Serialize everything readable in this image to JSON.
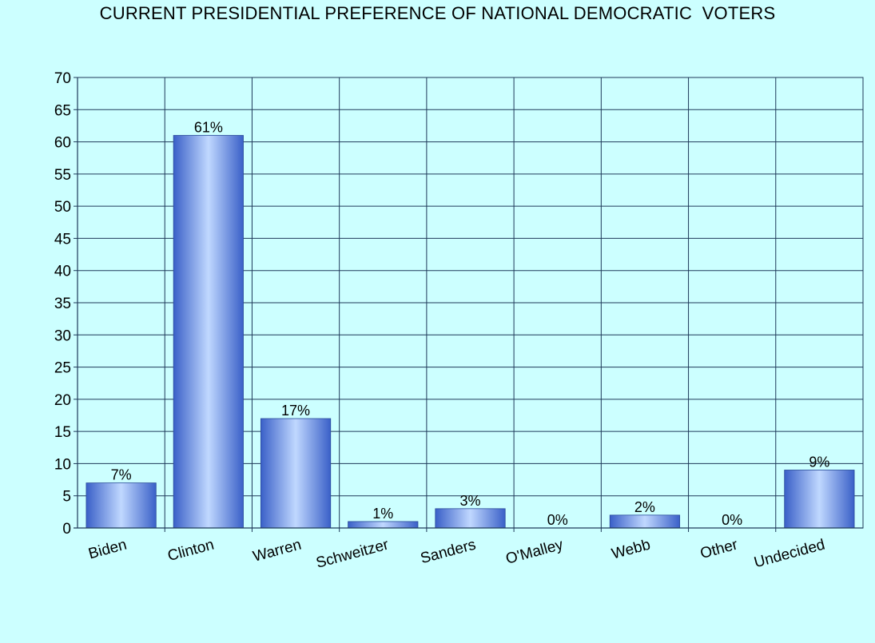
{
  "chart_data": {
    "type": "bar",
    "title": "CURRENT PRESIDENTIAL PREFERENCE OF NATIONAL DEMOCRATIC  VOTERS",
    "categories": [
      "Biden",
      "Clinton",
      "Warren",
      "Schweitzer",
      "Sanders",
      "O'Malley",
      "Webb",
      "Other",
      "Undecided"
    ],
    "values": [
      7,
      61,
      17,
      1,
      3,
      0,
      2,
      0,
      9
    ],
    "data_labels": [
      "7%",
      "61%",
      "17%",
      "1%",
      "3%",
      "0%",
      "2%",
      "0%",
      "9%"
    ],
    "ylim": [
      0,
      70
    ],
    "yticks": [
      "0",
      "5",
      "10",
      "15",
      "20",
      "25",
      "30",
      "35",
      "40",
      "45",
      "50",
      "55",
      "60",
      "65",
      "70"
    ],
    "ytick_values": [
      0,
      5,
      10,
      15,
      20,
      25,
      30,
      35,
      40,
      45,
      50,
      55,
      60,
      65,
      70
    ],
    "grid": true,
    "legend": "none",
    "bar_color": "#5b84e6",
    "bar_highlight": "#c0d8ff",
    "grid_color": "#1f3a5a",
    "background_color": "#ccffff",
    "plot_background_color": "#ccffff"
  }
}
